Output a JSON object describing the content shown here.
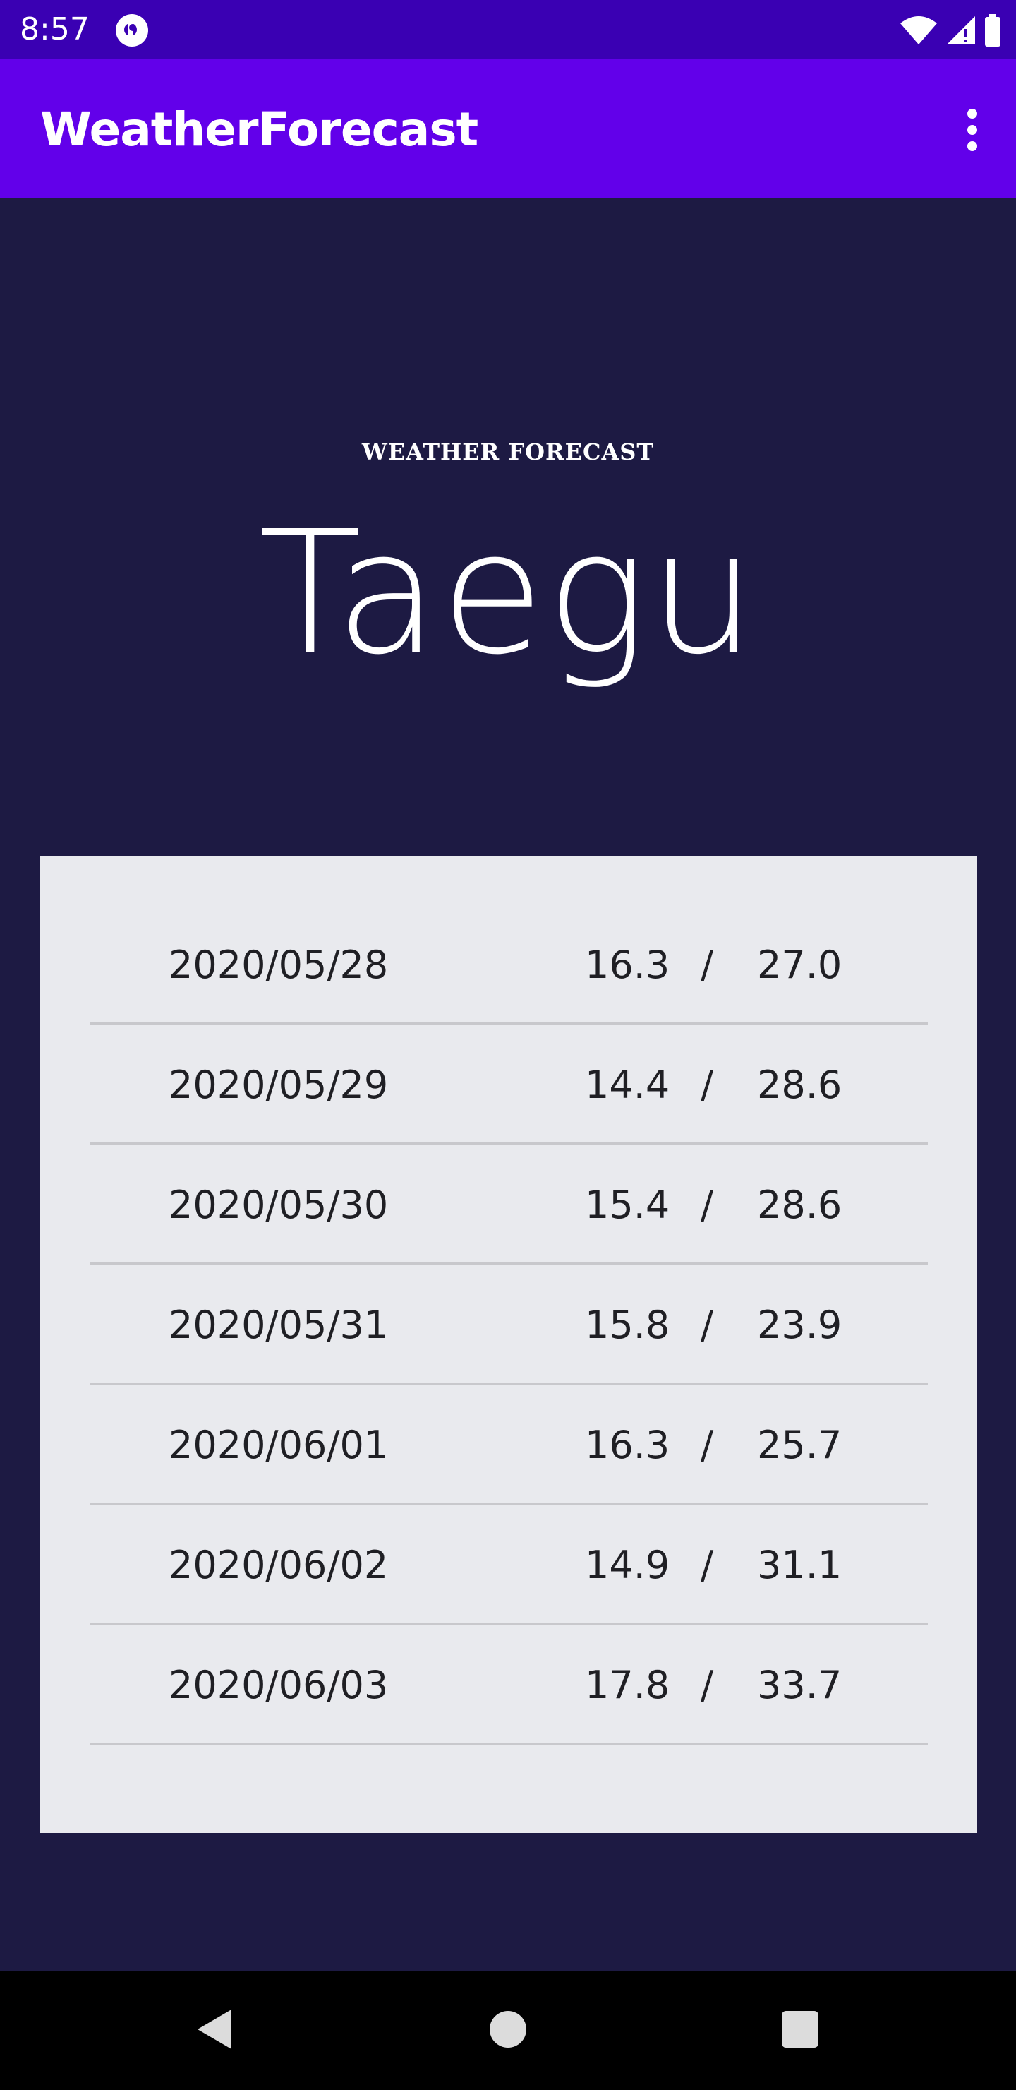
{
  "status_bar": {
    "time": "8:57",
    "icons": [
      "app-notification-icon",
      "wifi-icon",
      "cellular-signal-icon",
      "battery-icon"
    ]
  },
  "app_bar": {
    "title": "WeatherForecast",
    "menu_icon": "more-vert-icon"
  },
  "header": {
    "label": "WEATHER FORECAST",
    "city": "Taegu"
  },
  "forecast": {
    "separator": "/",
    "rows": [
      {
        "date": "2020/05/28",
        "min": "16.3",
        "max": "27.0"
      },
      {
        "date": "2020/05/29",
        "min": "14.4",
        "max": "28.6"
      },
      {
        "date": "2020/05/30",
        "min": "15.4",
        "max": "28.6"
      },
      {
        "date": "2020/05/31",
        "min": "15.8",
        "max": "23.9"
      },
      {
        "date": "2020/06/01",
        "min": "16.3",
        "max": "25.7"
      },
      {
        "date": "2020/06/02",
        "min": "14.9",
        "max": "31.1"
      },
      {
        "date": "2020/06/03",
        "min": "17.8",
        "max": "33.7"
      }
    ]
  },
  "nav_bar": {
    "icons": [
      "back-icon",
      "home-icon",
      "recents-icon"
    ]
  },
  "colors": {
    "status_bar": "#3a00b3",
    "app_bar": "#6200ea",
    "background": "#1d1a43",
    "card": "#e9eaee",
    "divider": "#c8c8cc"
  }
}
